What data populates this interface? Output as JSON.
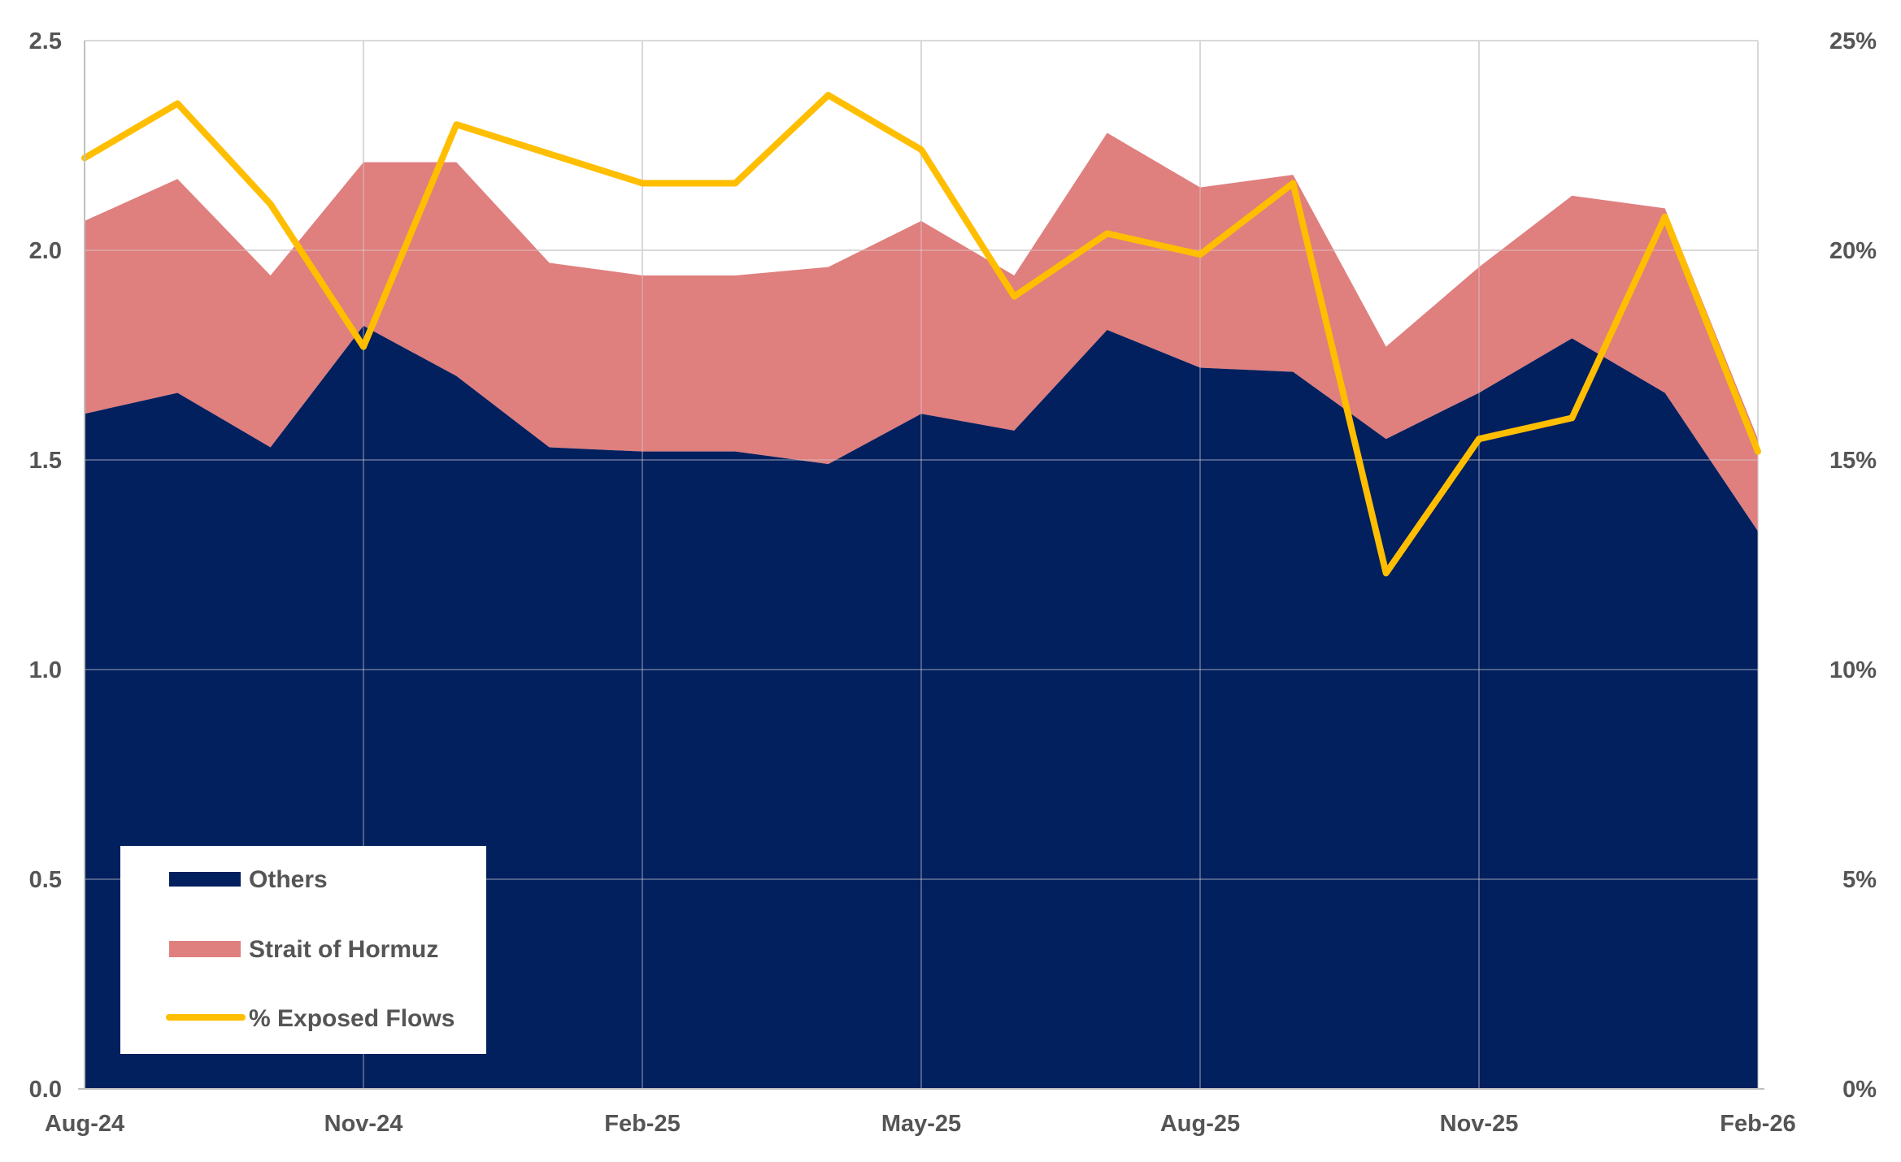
{
  "chart_data": {
    "type": "area",
    "title": "",
    "xlabel": "",
    "ylabel": "",
    "ylim": [
      0,
      2.5
    ],
    "y2lim": [
      0,
      25
    ],
    "y_ticks": [
      "0.0",
      "0.5",
      "1.0",
      "1.5",
      "2.0",
      "2.5"
    ],
    "y2_ticks": [
      "0%",
      "5%",
      "10%",
      "15%",
      "20%",
      "25%"
    ],
    "x_tick_labels": [
      "Aug-24",
      "Nov-24",
      "Feb-25",
      "May-25",
      "Aug-25",
      "Nov-25",
      "Feb-26"
    ],
    "x": [
      "Aug-24",
      "Sep-24",
      "Oct-24",
      "Nov-24",
      "Dec-24",
      "Jan-25",
      "Feb-25",
      "Mar-25",
      "Apr-25",
      "May-25",
      "Jun-25",
      "Jul-25",
      "Aug-25",
      "Sep-25",
      "Oct-25",
      "Nov-25",
      "Dec-25",
      "Jan-26",
      "Feb-26"
    ],
    "grid": true,
    "legend_position": "bottom-left",
    "series": [
      {
        "name": "Others",
        "kind": "stacked-area",
        "axis": "left",
        "color": "#021f5e",
        "values": [
          1.61,
          1.66,
          1.53,
          1.82,
          1.7,
          1.53,
          1.52,
          1.52,
          1.49,
          1.61,
          1.57,
          1.81,
          1.72,
          1.71,
          1.55,
          1.66,
          1.79,
          1.66,
          1.33
        ]
      },
      {
        "name": "Strait of Hormuz",
        "kind": "stacked-area",
        "axis": "left",
        "color": "#df7f7e",
        "values": [
          0.46,
          0.51,
          0.41,
          0.39,
          0.51,
          0.44,
          0.42,
          0.42,
          0.47,
          0.46,
          0.37,
          0.47,
          0.43,
          0.47,
          0.22,
          0.3,
          0.34,
          0.44,
          0.22
        ]
      },
      {
        "name": "% Exposed Flows",
        "kind": "line",
        "axis": "right",
        "unit": "%",
        "color": "#ffbe00",
        "values": [
          22.2,
          23.5,
          21.1,
          17.7,
          23.0,
          22.3,
          21.6,
          21.6,
          23.7,
          22.4,
          18.9,
          20.4,
          19.9,
          21.6,
          12.3,
          15.5,
          16.0,
          20.8,
          15.2
        ]
      }
    ]
  }
}
